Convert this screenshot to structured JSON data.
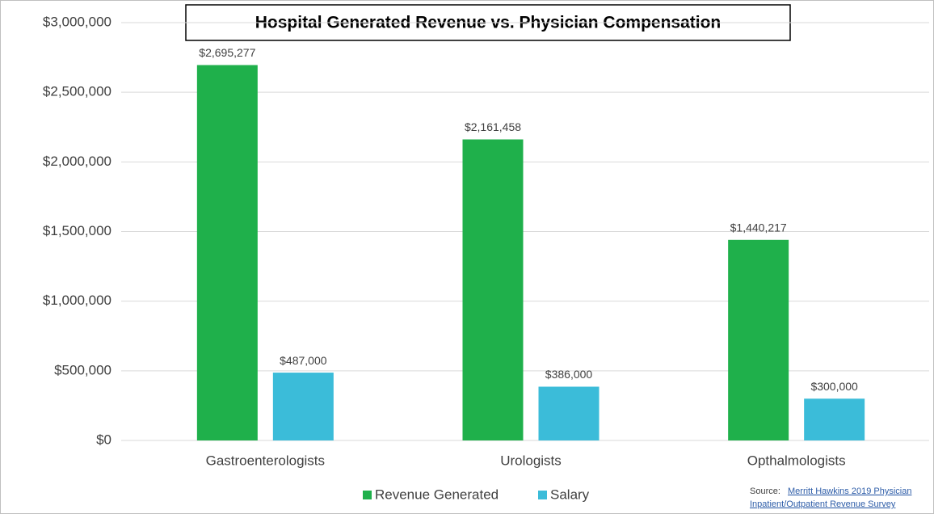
{
  "chart_data": {
    "type": "bar",
    "title": "Hospital Generated Revenue vs. Physician Compensation",
    "categories": [
      "Gastroenterologists",
      "Urologists",
      "Opthalmologists"
    ],
    "series": [
      {
        "name": "Revenue Generated",
        "color": "#1fb04b",
        "values": [
          2695277,
          2161458,
          1440217
        ],
        "value_labels": [
          "$2,695,277",
          "$2,161,458",
          "$1,440,217"
        ]
      },
      {
        "name": "Salary",
        "color": "#3bbcd9",
        "values": [
          487000,
          386000,
          300000
        ],
        "value_labels": [
          "$487,000",
          "$386,000",
          "$300,000"
        ]
      }
    ],
    "ylim": [
      0,
      3000000
    ],
    "yticks": [
      {
        "value": 0,
        "label": "$0"
      },
      {
        "value": 500000,
        "label": "$500,000"
      },
      {
        "value": 1000000,
        "label": "$1,000,000"
      },
      {
        "value": 1500000,
        "label": "$1,500,000"
      },
      {
        "value": 2000000,
        "label": "$2,000,000"
      },
      {
        "value": 2500000,
        "label": "$2,500,000"
      },
      {
        "value": 3000000,
        "label": "$3,000,000"
      }
    ],
    "grid": true,
    "legend": "bottom",
    "source_label": "Source:",
    "source_link": [
      "Merritt Hawkins 2019 Physician",
      "Inpatient/Outpatient Revenue Survey"
    ]
  }
}
